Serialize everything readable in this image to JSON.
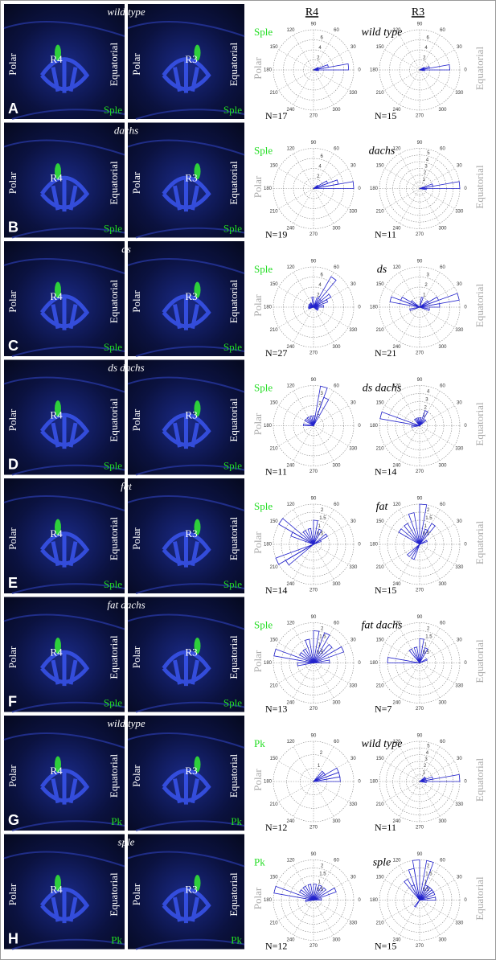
{
  "header": {
    "r4": "R4",
    "r3": "R3"
  },
  "labels": {
    "polar": "Polar",
    "equatorial": "Equatorial"
  },
  "panels": [
    {
      "letter": "A",
      "genotype": "wild type",
      "marker": "Sple",
      "left_cell": "R4",
      "right_cell": "R3"
    },
    {
      "letter": "B",
      "genotype": "dachs",
      "marker": "Sple",
      "left_cell": "R4",
      "right_cell": "R3"
    },
    {
      "letter": "C",
      "genotype": "ds",
      "marker": "Sple",
      "left_cell": "R4",
      "right_cell": "R3"
    },
    {
      "letter": "D",
      "genotype": "ds dachs",
      "marker": "Sple",
      "left_cell": "R4",
      "right_cell": "R3"
    },
    {
      "letter": "E",
      "genotype": "fat",
      "marker": "Sple",
      "left_cell": "R4",
      "right_cell": "R3"
    },
    {
      "letter": "F",
      "genotype": "fat dachs",
      "marker": "Sple",
      "left_cell": "R4",
      "right_cell": "R3"
    },
    {
      "letter": "G",
      "genotype": "wild type",
      "marker": "Pk",
      "left_cell": "R4",
      "right_cell": "R3"
    },
    {
      "letter": "H",
      "genotype": "sple",
      "marker": "Pk",
      "left_cell": "R4",
      "right_cell": "R3"
    }
  ],
  "chart_data": [
    {
      "type": "rose",
      "n_label": "N=17",
      "rlim": [
        0,
        8
      ],
      "rticks": [
        2,
        4,
        6
      ],
      "angle_ticks": [
        90,
        60,
        30,
        0,
        330,
        300,
        270,
        240,
        210,
        180,
        150,
        120
      ],
      "bin_width": 10,
      "color": "#2222cc",
      "theta": [
        355,
        5,
        15,
        25
      ],
      "values": [
        1,
        7,
        3,
        1
      ]
    },
    {
      "type": "rose",
      "n_label": "N=15",
      "rlim": [
        0,
        8
      ],
      "rticks": [
        2,
        4,
        6
      ],
      "angle_ticks": [
        90,
        60,
        30,
        0,
        330,
        300,
        270,
        240,
        210,
        180,
        150,
        120
      ],
      "bin_width": 10,
      "color": "#2222cc",
      "theta": [
        355,
        5,
        15,
        25
      ],
      "values": [
        1,
        6,
        2,
        1
      ]
    },
    {
      "type": "rose",
      "n_label": "N=19",
      "rlim": [
        0,
        8
      ],
      "rticks": [
        2,
        4,
        6
      ],
      "angle_ticks": [
        90,
        60,
        30,
        0,
        330,
        300,
        270,
        240,
        210,
        180,
        150,
        120
      ],
      "bin_width": 10,
      "color": "#2222cc",
      "theta": [
        5,
        15,
        25,
        35
      ],
      "values": [
        8,
        5,
        3,
        1
      ]
    },
    {
      "type": "rose",
      "n_label": "N=11",
      "rlim": [
        0,
        6
      ],
      "rticks": [
        1,
        2,
        3,
        4,
        5
      ],
      "angle_ticks": [
        90,
        60,
        30,
        0,
        330,
        300,
        270,
        240,
        210,
        180,
        150,
        120
      ],
      "bin_width": 10,
      "color": "#2222cc",
      "theta": [
        355,
        5,
        15
      ],
      "values": [
        1,
        6,
        2
      ]
    },
    {
      "type": "rose",
      "n_label": "N=27",
      "rlim": [
        0,
        8
      ],
      "rticks": [
        2,
        4,
        6
      ],
      "angle_ticks": [
        90,
        60,
        30,
        0,
        330,
        300,
        270,
        240,
        210,
        180,
        150,
        120
      ],
      "bin_width": 10,
      "color": "#2222cc",
      "theta": [
        5,
        15,
        25,
        35,
        45,
        55,
        65,
        95,
        125,
        145,
        165,
        185,
        195,
        345,
        325
      ],
      "values": [
        2,
        1,
        3,
        4,
        2,
        7,
        2,
        2,
        1,
        1,
        1,
        1,
        1,
        1,
        1
      ]
    },
    {
      "type": "rose",
      "n_label": "N=21",
      "rlim": [
        0,
        4
      ],
      "rticks": [
        1,
        2,
        3
      ],
      "angle_ticks": [
        90,
        60,
        30,
        0,
        330,
        300,
        270,
        240,
        210,
        180,
        150,
        120
      ],
      "bin_width": 10,
      "color": "#2222cc",
      "theta": [
        15,
        25,
        35,
        145,
        155,
        165,
        195,
        345,
        5,
        75
      ],
      "values": [
        4,
        2,
        1,
        1,
        2,
        3,
        1,
        1,
        2,
        1
      ]
    },
    {
      "type": "rose",
      "n_label": "N=11",
      "rlim": [
        0,
        4
      ],
      "rticks": [
        1,
        2,
        3
      ],
      "angle_ticks": [
        90,
        60,
        30,
        0,
        330,
        300,
        270,
        240,
        210,
        180,
        150,
        120
      ],
      "bin_width": 10,
      "color": "#2222cc",
      "theta": [
        65,
        75,
        85,
        105,
        125,
        145,
        175
      ],
      "values": [
        3,
        4,
        1,
        1,
        1,
        1,
        1
      ]
    },
    {
      "type": "rose",
      "n_label": "N=14",
      "rlim": [
        0,
        5
      ],
      "rticks": [
        1,
        2,
        3,
        4
      ],
      "angle_ticks": [
        90,
        60,
        30,
        0,
        330,
        300,
        270,
        240,
        210,
        180,
        150,
        120
      ],
      "bin_width": 10,
      "color": "#2222cc",
      "theta": [
        165,
        45,
        65,
        85,
        105,
        125,
        185
      ],
      "values": [
        5,
        1,
        2,
        1,
        1,
        1,
        1
      ]
    },
    {
      "type": "rose",
      "n_label": "N=14",
      "rlim": [
        0,
        2.5
      ],
      "rticks": [
        0.5,
        1,
        1.5,
        2
      ],
      "angle_ticks": [
        90,
        60,
        30,
        0,
        330,
        300,
        270,
        240,
        210,
        180,
        150,
        120
      ],
      "bin_width": 10,
      "color": "#2222cc",
      "theta": [
        145,
        155,
        205,
        215,
        65,
        85,
        105,
        125,
        25,
        35
      ],
      "values": [
        2.5,
        1.5,
        2.5,
        2,
        1,
        1.5,
        1,
        1,
        0.5,
        1
      ]
    },
    {
      "type": "rose",
      "n_label": "N=15",
      "rlim": [
        0,
        2.5
      ],
      "rticks": [
        0.5,
        1,
        1.5,
        2
      ],
      "angle_ticks": [
        90,
        60,
        30,
        0,
        330,
        300,
        270,
        240,
        210,
        180,
        150,
        120
      ],
      "bin_width": 10,
      "color": "#2222cc",
      "theta": [
        85,
        105,
        125,
        145,
        55,
        65,
        25,
        225,
        245
      ],
      "values": [
        2.5,
        2,
        1.5,
        1.5,
        1.5,
        1,
        0.5,
        1,
        1
      ]
    },
    {
      "type": "rose",
      "n_label": "N=13",
      "rlim": [
        0,
        2.5
      ],
      "rticks": [
        0.5,
        1,
        1.5,
        2
      ],
      "angle_ticks": [
        90,
        60,
        30,
        0,
        330,
        300,
        270,
        240,
        210,
        180,
        150,
        120
      ],
      "bin_width": 10,
      "color": "#2222cc",
      "theta": [
        165,
        145,
        125,
        105,
        85,
        65,
        45,
        25,
        5,
        185
      ],
      "values": [
        2.5,
        1,
        1,
        1.5,
        2,
        2,
        1.5,
        2,
        1,
        1
      ]
    },
    {
      "type": "rose",
      "n_label": "N=7",
      "rlim": [
        0,
        2.5
      ],
      "rticks": [
        0.5,
        1,
        1.5,
        2
      ],
      "angle_ticks": [
        90,
        60,
        30,
        0,
        330,
        300,
        270,
        240,
        210,
        180,
        150,
        120
      ],
      "bin_width": 10,
      "color": "#2222cc",
      "theta": [
        65,
        85,
        105,
        125,
        175,
        25
      ],
      "values": [
        1,
        1.5,
        1,
        1,
        2,
        0.5
      ]
    },
    {
      "type": "rose",
      "n_label": "N=12",
      "rlim": [
        0,
        3
      ],
      "rticks": [
        1,
        2
      ],
      "angle_ticks": [
        90,
        60,
        30,
        0,
        330,
        300,
        270,
        240,
        210,
        180,
        150,
        120
      ],
      "bin_width": 10,
      "color": "#2222cc",
      "theta": [
        15,
        25,
        35,
        45,
        5
      ],
      "values": [
        2,
        2,
        1,
        1,
        2
      ]
    },
    {
      "type": "rose",
      "n_label": "N=11",
      "rlim": [
        0,
        6
      ],
      "rticks": [
        1,
        2,
        3,
        4,
        5
      ],
      "angle_ticks": [
        90,
        60,
        30,
        0,
        330,
        300,
        270,
        240,
        210,
        180,
        150,
        120
      ],
      "bin_width": 10,
      "color": "#2222cc",
      "theta": [
        355,
        5,
        15,
        25,
        35
      ],
      "values": [
        1,
        6,
        2,
        1,
        1
      ]
    },
    {
      "type": "rose",
      "n_label": "N=12",
      "rlim": [
        0,
        2.5
      ],
      "rticks": [
        0.5,
        1,
        1.5,
        2
      ],
      "angle_ticks": [
        90,
        60,
        30,
        0,
        330,
        300,
        270,
        240,
        210,
        180,
        150,
        120
      ],
      "bin_width": 10,
      "color": "#2222cc",
      "theta": [
        165,
        145,
        125,
        105,
        85,
        65,
        45,
        25,
        5,
        185
      ],
      "values": [
        2.5,
        1,
        1,
        1,
        1,
        1,
        1,
        1.5,
        0.5,
        0.5
      ]
    },
    {
      "type": "rose",
      "n_label": "N=15",
      "rlim": [
        0,
        2.5
      ],
      "rticks": [
        0.5,
        1,
        1.5,
        2
      ],
      "angle_ticks": [
        90,
        60,
        30,
        0,
        330,
        300,
        270,
        240,
        210,
        180,
        150,
        120
      ],
      "bin_width": 10,
      "color": "#2222cc",
      "theta": [
        95,
        105,
        115,
        125,
        75,
        65,
        55,
        45,
        35,
        25,
        5,
        235
      ],
      "values": [
        2.5,
        2,
        1,
        1.5,
        2.5,
        1,
        1,
        1,
        1,
        1,
        1,
        0.5
      ]
    }
  ]
}
